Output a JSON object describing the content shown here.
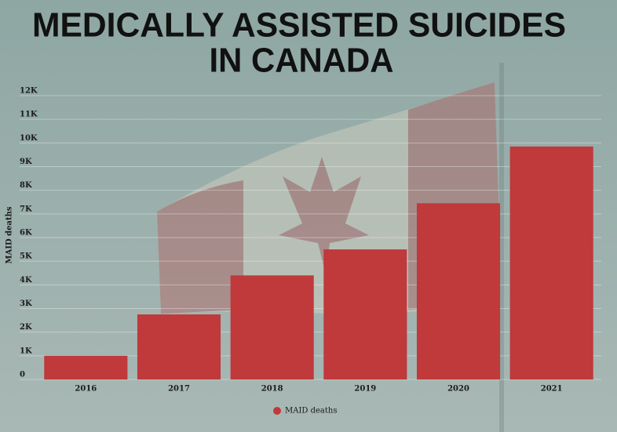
{
  "chart_data": {
    "type": "bar",
    "title": [
      "MEDICALLY ASSISTED SUICIDES",
      "IN CANADA"
    ],
    "ylabel": "MAID deaths",
    "categories": [
      "2016",
      "2017",
      "2018",
      "2019",
      "2020",
      "2021"
    ],
    "series": [
      {
        "name": "MAID deaths",
        "color": "#c0393b",
        "values": [
          1000,
          2750,
          4400,
          5500,
          7450,
          9850
        ]
      }
    ],
    "ylim": [
      0,
      12000
    ],
    "yticks": [
      0,
      {
        "value": 1000,
        "label": "1K"
      },
      {
        "value": 2000,
        "label": "2K"
      },
      {
        "value": 3000,
        "label": "3K"
      },
      {
        "value": 4000,
        "label": "4K"
      },
      {
        "value": 5000,
        "label": "5K"
      },
      {
        "value": 6000,
        "label": "6K"
      },
      {
        "value": 7000,
        "label": "7K"
      },
      {
        "value": 8000,
        "label": "8K"
      },
      {
        "value": 9000,
        "label": "9K"
      },
      {
        "value": 10000,
        "label": "10K"
      },
      {
        "value": 11000,
        "label": "11K"
      },
      {
        "value": 12000,
        "label": "12K"
      }
    ],
    "grid": true
  }
}
